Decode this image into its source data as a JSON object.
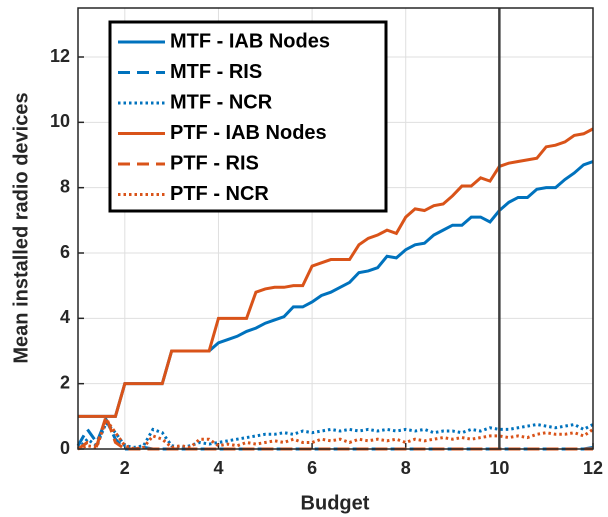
{
  "chart_data": {
    "type": "line",
    "xlabel": "Budget",
    "ylabel": "Mean installed radio devices",
    "x": [
      1,
      1.2,
      1.4,
      1.6,
      1.8,
      2,
      2.2,
      2.4,
      2.6,
      2.8,
      3,
      3.2,
      3.4,
      3.6,
      3.8,
      4,
      4.2,
      4.4,
      4.6,
      4.8,
      5,
      5.2,
      5.4,
      5.6,
      5.8,
      6,
      6.2,
      6.4,
      6.6,
      6.8,
      7,
      7.2,
      7.4,
      7.6,
      7.8,
      8,
      8.2,
      8.4,
      8.6,
      8.8,
      9,
      9.2,
      9.4,
      9.6,
      9.8,
      10,
      10.2,
      10.4,
      10.6,
      10.8,
      11,
      11.2,
      11.4,
      11.6,
      11.8,
      12
    ],
    "series": [
      {
        "name": "MTF - IAB Nodes",
        "color": "#0072BD",
        "dash": "solid",
        "values": [
          1,
          1,
          1,
          1,
          1,
          2,
          2,
          2,
          2,
          2,
          3,
          3,
          3,
          3,
          3,
          3.25,
          3.35,
          3.45,
          3.6,
          3.7,
          3.85,
          3.95,
          4.05,
          4.35,
          4.35,
          4.5,
          4.7,
          4.8,
          4.95,
          5.1,
          5.4,
          5.45,
          5.55,
          5.9,
          5.85,
          6.1,
          6.25,
          6.3,
          6.55,
          6.7,
          6.85,
          6.85,
          7.1,
          7.1,
          6.95,
          7.3,
          7.55,
          7.7,
          7.7,
          7.95,
          8,
          8,
          8.25,
          8.45,
          8.7,
          8.8
        ]
      },
      {
        "name": "MTF - RIS",
        "color": "#0072BD",
        "dash": "dashed",
        "values": [
          0.1,
          0.6,
          0.2,
          0.9,
          0.3,
          0,
          0,
          0.05,
          0,
          0,
          0,
          0,
          0,
          0,
          0,
          0,
          0,
          0,
          0,
          0,
          0,
          0,
          0,
          0,
          0,
          0,
          0,
          0,
          0,
          0,
          0,
          0,
          0,
          0,
          0,
          0,
          0,
          0,
          0,
          0,
          0,
          0,
          0,
          0,
          0,
          0,
          0,
          0,
          0,
          0,
          0,
          0,
          0,
          0,
          0,
          0.05
        ]
      },
      {
        "name": "MTF - NCR",
        "color": "#0072BD",
        "dash": "dotted",
        "values": [
          0,
          0.3,
          0.1,
          0.8,
          0.5,
          0.1,
          0.05,
          0.1,
          0.6,
          0.5,
          0.1,
          0.05,
          0.1,
          0.2,
          0.15,
          0.2,
          0.25,
          0.3,
          0.35,
          0.4,
          0.45,
          0.45,
          0.5,
          0.45,
          0.55,
          0.5,
          0.55,
          0.6,
          0.55,
          0.6,
          0.55,
          0.6,
          0.55,
          0.6,
          0.55,
          0.6,
          0.55,
          0.6,
          0.5,
          0.55,
          0.55,
          0.5,
          0.6,
          0.55,
          0.65,
          0.6,
          0.6,
          0.65,
          0.7,
          0.75,
          0.7,
          0.65,
          0.7,
          0.75,
          0.6,
          0.75
        ]
      },
      {
        "name": "PTF - IAB Nodes",
        "color": "#D95319",
        "dash": "solid",
        "values": [
          1,
          1,
          1,
          1,
          1,
          2,
          2,
          2,
          2,
          2,
          3,
          3,
          3,
          3,
          3,
          4,
          4,
          4,
          4,
          4.8,
          4.9,
          4.95,
          4.95,
          5,
          5,
          5.6,
          5.7,
          5.8,
          5.8,
          5.8,
          6.25,
          6.45,
          6.55,
          6.7,
          6.6,
          7.1,
          7.35,
          7.3,
          7.45,
          7.5,
          7.75,
          8.05,
          8.05,
          8.3,
          8.2,
          8.65,
          8.75,
          8.8,
          8.85,
          8.9,
          9.25,
          9.3,
          9.4,
          9.6,
          9.65,
          9.8
        ]
      },
      {
        "name": "PTF - RIS",
        "color": "#D95319",
        "dash": "dashed",
        "values": [
          0,
          0.2,
          0.1,
          1,
          0.2,
          0,
          0,
          0,
          0,
          0,
          0,
          0,
          0,
          0,
          0,
          0,
          0,
          0,
          0,
          0,
          0,
          0,
          0,
          0,
          0,
          0,
          0,
          0,
          0,
          0,
          0,
          0,
          0,
          0,
          0,
          0,
          0,
          0,
          0,
          0,
          0,
          0,
          0,
          0,
          0,
          0,
          0,
          0,
          0,
          0,
          0,
          0,
          0,
          0,
          0,
          0
        ]
      },
      {
        "name": "PTF - NCR",
        "color": "#D95319",
        "dash": "dotted",
        "values": [
          0,
          0.1,
          0.05,
          0.9,
          0.5,
          0.1,
          0,
          0.05,
          0.4,
          0.3,
          0.05,
          0.1,
          0.05,
          0.3,
          0.3,
          0.1,
          0.15,
          0.1,
          0.2,
          0.15,
          0.2,
          0.25,
          0.2,
          0.3,
          0.2,
          0.2,
          0.3,
          0.25,
          0.3,
          0.2,
          0.3,
          0.25,
          0.3,
          0.25,
          0.3,
          0.2,
          0.3,
          0.25,
          0.3,
          0.35,
          0.3,
          0.35,
          0.3,
          0.35,
          0.4,
          0.4,
          0.35,
          0.4,
          0.35,
          0.45,
          0.5,
          0.45,
          0.45,
          0.5,
          0.4,
          0.6
        ]
      }
    ],
    "xlim": [
      1,
      12
    ],
    "ylim": [
      0,
      13.5
    ],
    "xticks": [
      2,
      4,
      6,
      8,
      10,
      12
    ],
    "yticks": [
      0,
      2,
      4,
      6,
      8,
      10,
      12
    ],
    "grid": true,
    "legend": "upper-left",
    "vline": 10
  }
}
